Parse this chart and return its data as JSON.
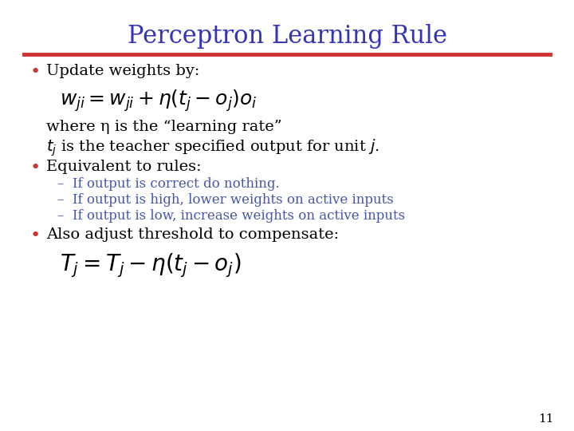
{
  "title": "Perceptron Learning Rule",
  "title_color": "#3333bb",
  "title_fontsize": 22,
  "bg_color": "#ffffff",
  "rule_color": "#cc3333",
  "bullet_color": "#cc3333",
  "bullet1_text": "Update weights by:",
  "where_text": "where η is the “learning rate”",
  "tj_line": "$t_j$ is the teacher specified output for unit $j$.",
  "bullet2_text": "Equivalent to rules:",
  "subbullet_color": "#4455aa",
  "subbullet1": "If output is correct do nothing.",
  "subbullet2": "If output is high, lower weights on active inputs",
  "subbullet3": "If output is low, increase weights on active inputs",
  "bullet3_text": "Also adjust threshold to compensate:",
  "page_number": "11",
  "main_text_color": "#000000",
  "body_fontsize": 14,
  "formula1_fontsize": 18,
  "formula2_fontsize": 20,
  "sub_fontsize": 12
}
